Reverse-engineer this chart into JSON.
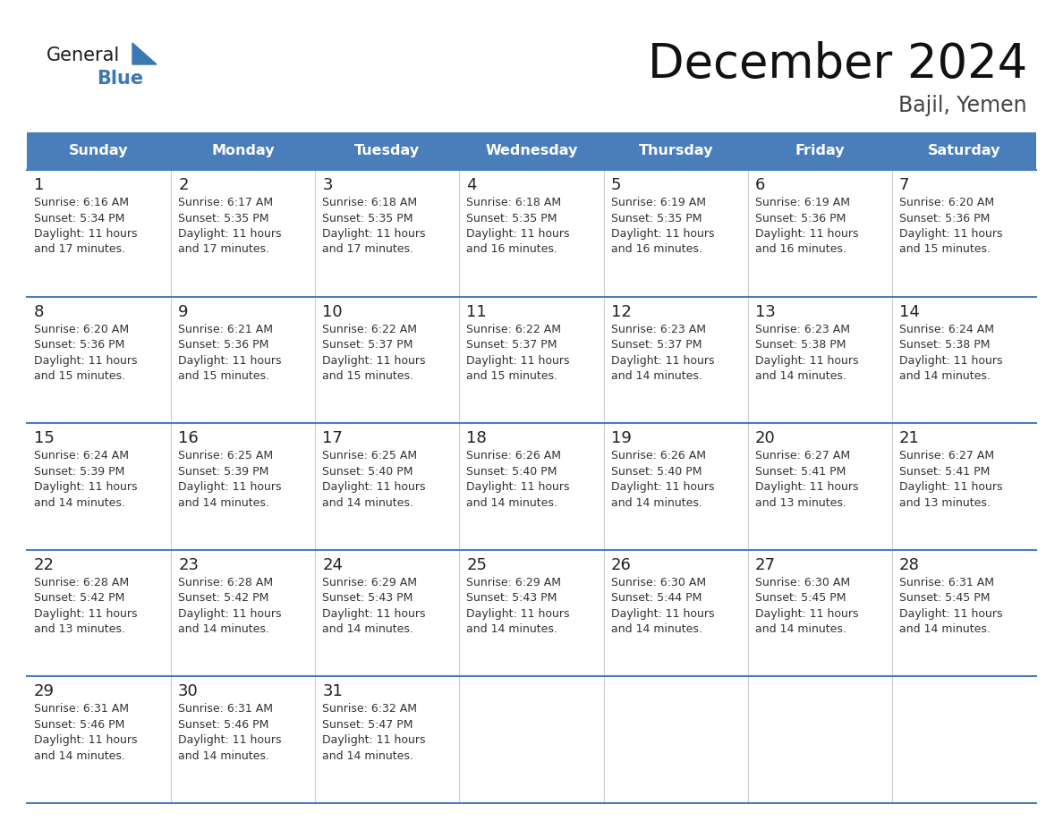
{
  "title": "December 2024",
  "subtitle": "Bajil, Yemen",
  "days_of_week": [
    "Sunday",
    "Monday",
    "Tuesday",
    "Wednesday",
    "Thursday",
    "Friday",
    "Saturday"
  ],
  "header_bg_color": "#4A7EBB",
  "header_text_color": "#FFFFFF",
  "cell_bg_color": "#FFFFFF",
  "cell_border_color": "#4A7EBB",
  "day_number_color": "#222222",
  "cell_text_color": "#333333",
  "title_color": "#111111",
  "subtitle_color": "#444444",
  "logo_general_color": "#1a1a1a",
  "logo_blue_color": "#3A78B5",
  "calendar_data": [
    [
      {
        "day": "1",
        "sunrise": "6:16 AM",
        "sunset": "5:34 PM",
        "daylight_hours": "11 hours",
        "daylight_mins": "and 17 minutes."
      },
      {
        "day": "2",
        "sunrise": "6:17 AM",
        "sunset": "5:35 PM",
        "daylight_hours": "11 hours",
        "daylight_mins": "and 17 minutes."
      },
      {
        "day": "3",
        "sunrise": "6:18 AM",
        "sunset": "5:35 PM",
        "daylight_hours": "11 hours",
        "daylight_mins": "and 17 minutes."
      },
      {
        "day": "4",
        "sunrise": "6:18 AM",
        "sunset": "5:35 PM",
        "daylight_hours": "11 hours",
        "daylight_mins": "and 16 minutes."
      },
      {
        "day": "5",
        "sunrise": "6:19 AM",
        "sunset": "5:35 PM",
        "daylight_hours": "11 hours",
        "daylight_mins": "and 16 minutes."
      },
      {
        "day": "6",
        "sunrise": "6:19 AM",
        "sunset": "5:36 PM",
        "daylight_hours": "11 hours",
        "daylight_mins": "and 16 minutes."
      },
      {
        "day": "7",
        "sunrise": "6:20 AM",
        "sunset": "5:36 PM",
        "daylight_hours": "11 hours",
        "daylight_mins": "and 15 minutes."
      }
    ],
    [
      {
        "day": "8",
        "sunrise": "6:20 AM",
        "sunset": "5:36 PM",
        "daylight_hours": "11 hours",
        "daylight_mins": "and 15 minutes."
      },
      {
        "day": "9",
        "sunrise": "6:21 AM",
        "sunset": "5:36 PM",
        "daylight_hours": "11 hours",
        "daylight_mins": "and 15 minutes."
      },
      {
        "day": "10",
        "sunrise": "6:22 AM",
        "sunset": "5:37 PM",
        "daylight_hours": "11 hours",
        "daylight_mins": "and 15 minutes."
      },
      {
        "day": "11",
        "sunrise": "6:22 AM",
        "sunset": "5:37 PM",
        "daylight_hours": "11 hours",
        "daylight_mins": "and 15 minutes."
      },
      {
        "day": "12",
        "sunrise": "6:23 AM",
        "sunset": "5:37 PM",
        "daylight_hours": "11 hours",
        "daylight_mins": "and 14 minutes."
      },
      {
        "day": "13",
        "sunrise": "6:23 AM",
        "sunset": "5:38 PM",
        "daylight_hours": "11 hours",
        "daylight_mins": "and 14 minutes."
      },
      {
        "day": "14",
        "sunrise": "6:24 AM",
        "sunset": "5:38 PM",
        "daylight_hours": "11 hours",
        "daylight_mins": "and 14 minutes."
      }
    ],
    [
      {
        "day": "15",
        "sunrise": "6:24 AM",
        "sunset": "5:39 PM",
        "daylight_hours": "11 hours",
        "daylight_mins": "and 14 minutes."
      },
      {
        "day": "16",
        "sunrise": "6:25 AM",
        "sunset": "5:39 PM",
        "daylight_hours": "11 hours",
        "daylight_mins": "and 14 minutes."
      },
      {
        "day": "17",
        "sunrise": "6:25 AM",
        "sunset": "5:40 PM",
        "daylight_hours": "11 hours",
        "daylight_mins": "and 14 minutes."
      },
      {
        "day": "18",
        "sunrise": "6:26 AM",
        "sunset": "5:40 PM",
        "daylight_hours": "11 hours",
        "daylight_mins": "and 14 minutes."
      },
      {
        "day": "19",
        "sunrise": "6:26 AM",
        "sunset": "5:40 PM",
        "daylight_hours": "11 hours",
        "daylight_mins": "and 14 minutes."
      },
      {
        "day": "20",
        "sunrise": "6:27 AM",
        "sunset": "5:41 PM",
        "daylight_hours": "11 hours",
        "daylight_mins": "and 13 minutes."
      },
      {
        "day": "21",
        "sunrise": "6:27 AM",
        "sunset": "5:41 PM",
        "daylight_hours": "11 hours",
        "daylight_mins": "and 13 minutes."
      }
    ],
    [
      {
        "day": "22",
        "sunrise": "6:28 AM",
        "sunset": "5:42 PM",
        "daylight_hours": "11 hours",
        "daylight_mins": "and 13 minutes."
      },
      {
        "day": "23",
        "sunrise": "6:28 AM",
        "sunset": "5:42 PM",
        "daylight_hours": "11 hours",
        "daylight_mins": "and 14 minutes."
      },
      {
        "day": "24",
        "sunrise": "6:29 AM",
        "sunset": "5:43 PM",
        "daylight_hours": "11 hours",
        "daylight_mins": "and 14 minutes."
      },
      {
        "day": "25",
        "sunrise": "6:29 AM",
        "sunset": "5:43 PM",
        "daylight_hours": "11 hours",
        "daylight_mins": "and 14 minutes."
      },
      {
        "day": "26",
        "sunrise": "6:30 AM",
        "sunset": "5:44 PM",
        "daylight_hours": "11 hours",
        "daylight_mins": "and 14 minutes."
      },
      {
        "day": "27",
        "sunrise": "6:30 AM",
        "sunset": "5:45 PM",
        "daylight_hours": "11 hours",
        "daylight_mins": "and 14 minutes."
      },
      {
        "day": "28",
        "sunrise": "6:31 AM",
        "sunset": "5:45 PM",
        "daylight_hours": "11 hours",
        "daylight_mins": "and 14 minutes."
      }
    ],
    [
      {
        "day": "29",
        "sunrise": "6:31 AM",
        "sunset": "5:46 PM",
        "daylight_hours": "11 hours",
        "daylight_mins": "and 14 minutes."
      },
      {
        "day": "30",
        "sunrise": "6:31 AM",
        "sunset": "5:46 PM",
        "daylight_hours": "11 hours",
        "daylight_mins": "and 14 minutes."
      },
      {
        "day": "31",
        "sunrise": "6:32 AM",
        "sunset": "5:47 PM",
        "daylight_hours": "11 hours",
        "daylight_mins": "and 14 minutes."
      },
      null,
      null,
      null,
      null
    ]
  ]
}
